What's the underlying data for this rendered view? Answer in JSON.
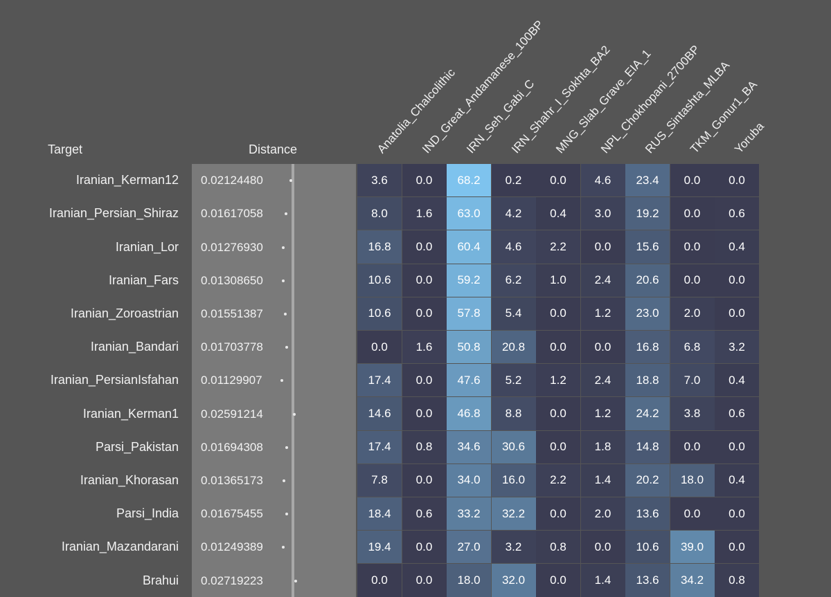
{
  "headers": {
    "target": "Target",
    "distance": "Distance"
  },
  "colors": {
    "low": "#3b3c52",
    "high": "#7ec3ee",
    "panel": "#7a7a7a",
    "background": "#555555"
  },
  "chart_data": {
    "type": "heatmap",
    "columns": [
      "Anatolia_Chalcolithic",
      "IND_Great_Andamanese_100BP",
      "IRN_Seh_Gabi_C",
      "IRN_Shahr_I_Sokhta_BA2",
      "MNG_Slab_Grave_EIA_1",
      "NPL_Chokhopani_2700BP",
      "RUS_Sintashta_MLBA",
      "TKM_Gonur1_BA",
      "Yoruba"
    ],
    "rows": [
      "Iranian_Kerman12",
      "Iranian_Persian_Shiraz",
      "Iranian_Lor",
      "Iranian_Fars",
      "Iranian_Zoroastrian",
      "Iranian_Bandari",
      "Iranian_PersianIsfahan",
      "Iranian_Kerman1",
      "Parsi_Pakistan",
      "Iranian_Khorasan",
      "Parsi_India",
      "Iranian_Mazandarani",
      "Brahui"
    ],
    "distance": [
      "0.02124480",
      "0.01617058",
      "0.01276930",
      "0.01308650",
      "0.01551387",
      "0.01703778",
      "0.01129907",
      "0.02591214",
      "0.01694308",
      "0.01365173",
      "0.01675455",
      "0.01249389",
      "0.02719223"
    ],
    "values": [
      [
        "3.6",
        "0.0",
        "68.2",
        "0.2",
        "0.0",
        "4.6",
        "23.4",
        "0.0",
        "0.0"
      ],
      [
        "8.0",
        "1.6",
        "63.0",
        "4.2",
        "0.4",
        "3.0",
        "19.2",
        "0.0",
        "0.6"
      ],
      [
        "16.8",
        "0.0",
        "60.4",
        "4.6",
        "2.2",
        "0.0",
        "15.6",
        "0.0",
        "0.4"
      ],
      [
        "10.6",
        "0.0",
        "59.2",
        "6.2",
        "1.0",
        "2.4",
        "20.6",
        "0.0",
        "0.0"
      ],
      [
        "10.6",
        "0.0",
        "57.8",
        "5.4",
        "0.0",
        "1.2",
        "23.0",
        "2.0",
        "0.0"
      ],
      [
        "0.0",
        "1.6",
        "50.8",
        "20.8",
        "0.0",
        "0.0",
        "16.8",
        "6.8",
        "3.2"
      ],
      [
        "17.4",
        "0.0",
        "47.6",
        "5.2",
        "1.2",
        "2.4",
        "18.8",
        "7.0",
        "0.4"
      ],
      [
        "14.6",
        "0.0",
        "46.8",
        "8.8",
        "0.0",
        "1.2",
        "24.2",
        "3.8",
        "0.6"
      ],
      [
        "17.4",
        "0.8",
        "34.6",
        "30.6",
        "0.0",
        "1.8",
        "14.8",
        "0.0",
        "0.0"
      ],
      [
        "7.8",
        "0.0",
        "34.0",
        "16.0",
        "2.2",
        "1.4",
        "20.2",
        "18.0",
        "0.4"
      ],
      [
        "18.4",
        "0.6",
        "33.2",
        "32.2",
        "0.0",
        "2.0",
        "13.6",
        "0.0",
        "0.0"
      ],
      [
        "19.4",
        "0.0",
        "27.0",
        "3.2",
        "0.8",
        "0.0",
        "10.6",
        "39.0",
        "0.0"
      ],
      [
        "0.0",
        "0.0",
        "18.0",
        "32.0",
        "0.0",
        "1.4",
        "13.6",
        "34.2",
        "0.8"
      ]
    ]
  }
}
